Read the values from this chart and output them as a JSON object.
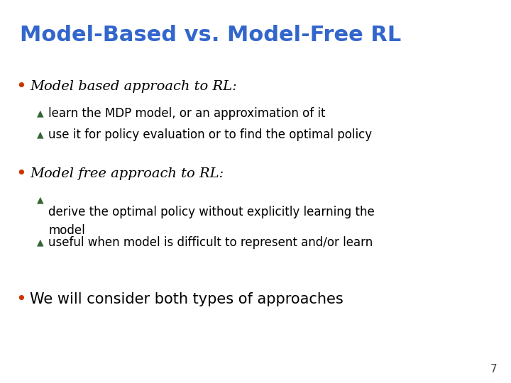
{
  "title": "Model-Based vs. Model-Free RL",
  "title_color": "#3366CC",
  "title_fontsize": 22,
  "background_color": "#FFFFFF",
  "bullet_color": "#CC3300",
  "arrow_color": "#336633",
  "bullet1_header": "Model based approach to RL:",
  "bullet1_sub1": "learn the MDP model, or an approximation of it",
  "bullet1_sub2": "use it for policy evaluation or to find the optimal policy",
  "bullet2_header": "Model free approach to RL:",
  "bullet2_sub1": "derive the optimal policy without explicitly learning the\nmodel",
  "bullet2_sub2": "useful when model is difficult to represent and/or learn",
  "bullet3": "We will consider both types of approaches",
  "page_number": "7",
  "header_fontsize": 14,
  "sub_fontsize": 12,
  "bullet3_fontsize": 15,
  "bullet_fontsize": 18,
  "arrow_fontsize": 9
}
